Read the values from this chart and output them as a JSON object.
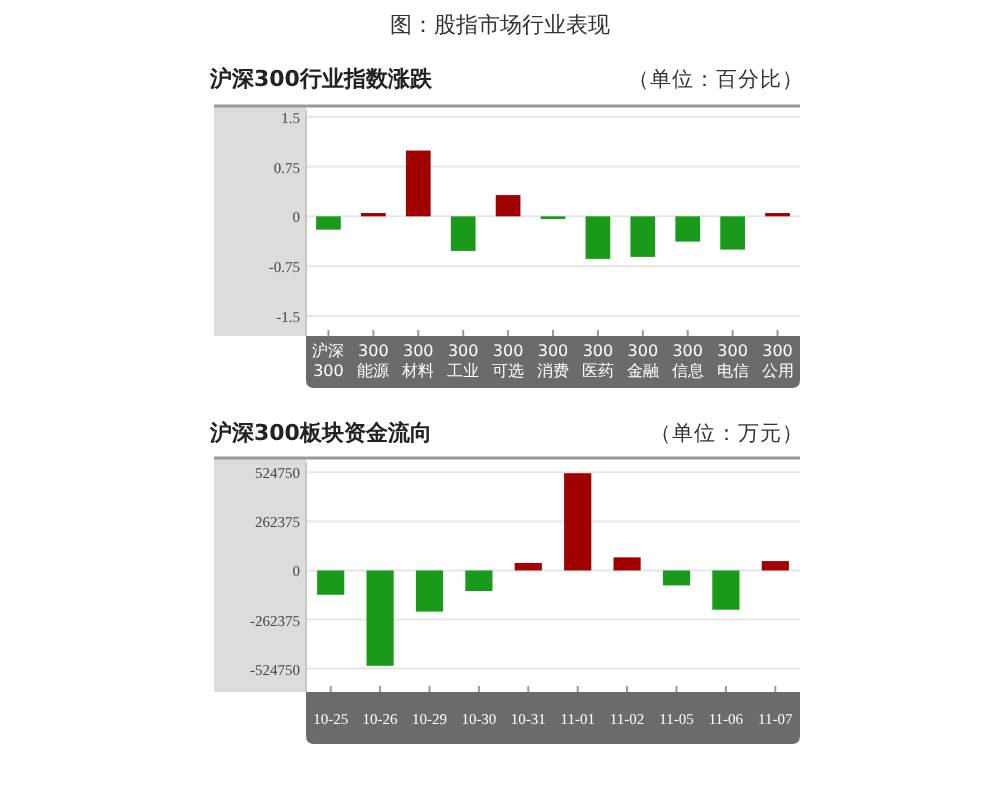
{
  "chart_data": [
    {
      "type": "other",
      "title": "图：股指市场行业表现"
    },
    {
      "type": "bar",
      "title": "沪深300行业指数涨跌",
      "subtitle": "（单位：百分比）",
      "categories": [
        "沪深\n300",
        "300\n能源",
        "300\n材料",
        "300\n工业",
        "300\n可选",
        "300\n消费",
        "300\n医药",
        "300\n金融",
        "300\n信息",
        "300\n电信",
        "300\n公用"
      ],
      "values": [
        -0.2,
        0.05,
        0.99,
        -0.52,
        0.32,
        -0.04,
        -0.64,
        -0.61,
        -0.38,
        -0.5,
        0.05
      ],
      "colors": [
        "#1a9a1a",
        "#a00000",
        "#a00000",
        "#1a9a1a",
        "#a00000",
        "#1a9a1a",
        "#1a9a1a",
        "#1a9a1a",
        "#1a9a1a",
        "#1a9a1a",
        "#a00000"
      ],
      "ylim": [
        -1.8,
        1.6
      ],
      "yticks": [
        1.5,
        0.75,
        0,
        -0.75,
        -1.5
      ],
      "grid": "y"
    },
    {
      "type": "bar",
      "title": "沪深300板块资金流向",
      "subtitle": "（单位：万元）",
      "categories": [
        "10-25",
        "10-26",
        "10-29",
        "10-30",
        "10-31",
        "11-01",
        "11-02",
        "11-05",
        "11-06",
        "11-07"
      ],
      "values": [
        -130000,
        -510000,
        -220000,
        -110000,
        40000,
        520000,
        70000,
        -80000,
        -210000,
        50000
      ],
      "colors": [
        "#1a9a1a",
        "#1a9a1a",
        "#1a9a1a",
        "#1a9a1a",
        "#a00000",
        "#a00000",
        "#a00000",
        "#1a9a1a",
        "#1a9a1a",
        "#a00000"
      ],
      "ylim": [
        -650000,
        580000
      ],
      "yticks": [
        524750,
        262375,
        0,
        -262375,
        -524750
      ],
      "grid": "y"
    }
  ]
}
